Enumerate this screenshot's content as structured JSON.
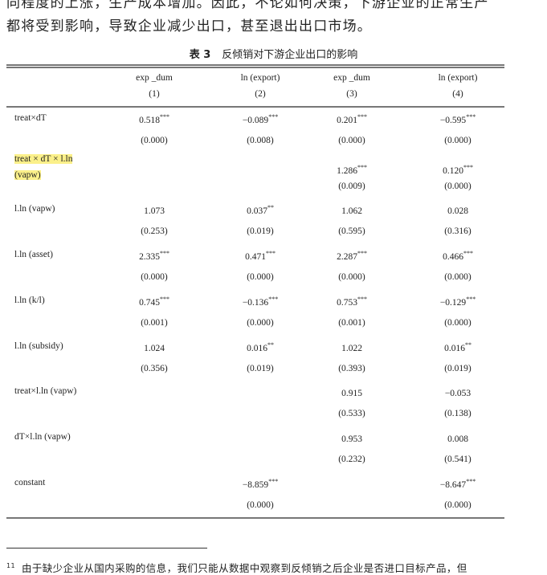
{
  "body_text": [
    "同程度的上涨，生产成本增加。因此，不论如何决策，下游企业的正常生产",
    "都将受到影响，导致企业减少出口，甚至退出出口市场。"
  ],
  "table": {
    "number": "表 3",
    "title": "反倾销对下游企业出口的影响",
    "headers": [
      "exp _dum",
      "ln (export)",
      "exp _dum",
      "ln (export)"
    ],
    "col_numbers": [
      "(1)",
      "(2)",
      "(3)",
      "(4)"
    ],
    "rows": [
      {
        "label": "treat×dT",
        "vals": [
          [
            "0.518",
            "***"
          ],
          [
            "−0.089",
            "***"
          ],
          [
            "0.201",
            "***"
          ],
          [
            "−0.595",
            "***"
          ]
        ],
        "pvals": [
          "(0.000)",
          "(0.008)",
          "(0.000)",
          "(0.000)"
        ]
      },
      {
        "label": "treat × dT × l.ln",
        "label2": "(vapw)",
        "highlight": true,
        "vals": [
          [
            "",
            ""
          ],
          [
            "",
            ""
          ],
          [
            "1.286",
            "***"
          ],
          [
            "0.120",
            "***"
          ]
        ],
        "pvals": [
          "",
          "",
          "(0.009)",
          "(0.000)"
        ]
      },
      {
        "label": "l.ln (vapw)",
        "vals": [
          [
            "1.073",
            ""
          ],
          [
            "0.037",
            "**"
          ],
          [
            "1.062",
            ""
          ],
          [
            "0.028",
            ""
          ]
        ],
        "pvals": [
          "(0.253)",
          "(0.019)",
          "(0.595)",
          "(0.316)"
        ]
      },
      {
        "label": "l.ln (asset)",
        "vals": [
          [
            "2.335",
            "***"
          ],
          [
            "0.471",
            "***"
          ],
          [
            "2.287",
            "***"
          ],
          [
            "0.466",
            "***"
          ]
        ],
        "pvals": [
          "(0.000)",
          "(0.000)",
          "(0.000)",
          "(0.000)"
        ]
      },
      {
        "label": "l.ln (k/l)",
        "vals": [
          [
            "0.745",
            "***"
          ],
          [
            "−0.136",
            "***"
          ],
          [
            "0.753",
            "***"
          ],
          [
            "−0.129",
            "***"
          ]
        ],
        "pvals": [
          "(0.001)",
          "(0.000)",
          "(0.001)",
          "(0.000)"
        ]
      },
      {
        "label": "l.ln (subsidy)",
        "vals": [
          [
            "1.024",
            ""
          ],
          [
            "0.016",
            "**"
          ],
          [
            "1.022",
            ""
          ],
          [
            "0.016",
            "**"
          ]
        ],
        "pvals": [
          "(0.356)",
          "(0.019)",
          "(0.393)",
          "(0.019)"
        ]
      },
      {
        "label": "treat×l.ln (vapw)",
        "vals": [
          [
            "",
            ""
          ],
          [
            "",
            ""
          ],
          [
            "0.915",
            ""
          ],
          [
            "−0.053",
            ""
          ]
        ],
        "pvals": [
          "",
          "",
          "(0.533)",
          "(0.138)"
        ]
      },
      {
        "label": "dT×l.ln (vapw)",
        "vals": [
          [
            "",
            ""
          ],
          [
            "",
            ""
          ],
          [
            "0.953",
            ""
          ],
          [
            "0.008",
            ""
          ]
        ],
        "pvals": [
          "",
          "",
          "(0.232)",
          "(0.541)"
        ]
      },
      {
        "label": "constant",
        "vals": [
          [
            "",
            ""
          ],
          [
            "−8.859",
            "***"
          ],
          [
            "",
            ""
          ],
          [
            "−8.647",
            "***"
          ]
        ],
        "pvals": [
          "",
          "(0.000)",
          "",
          "(0.000)"
        ]
      }
    ]
  },
  "footnote": {
    "mark": "11",
    "text": "由于缺少企业从国内采购的信息，我们只能从数据中观察到反倾销之后企业是否进口目标产品，但"
  },
  "colors": {
    "highlight": "#fbf08a"
  }
}
